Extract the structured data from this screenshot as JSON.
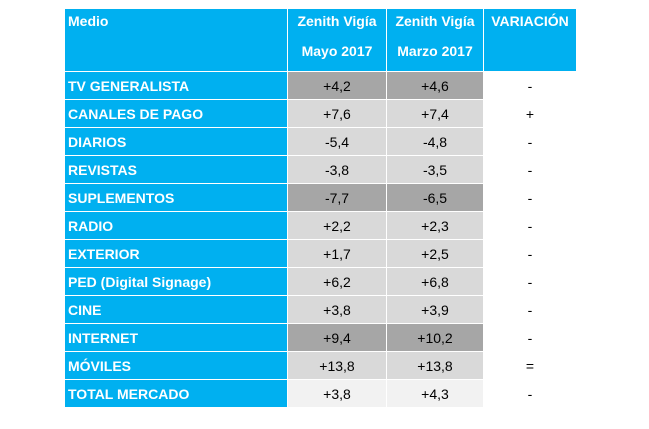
{
  "header": {
    "medio": "Medio",
    "col1_line1": "Zenith Vigía",
    "col1_line2": "Mayo 2017",
    "col2_line1": "Zenith Vigía",
    "col2_line2": "Marzo 2017",
    "variacion": "VARIACIÓN"
  },
  "rows": [
    {
      "name": "TV GENERALISTA",
      "mayo": "+4,2",
      "marzo": "+4,6",
      "var": "-"
    },
    {
      "name": "CANALES DE PAGO",
      "mayo": "+7,6",
      "marzo": "+7,4",
      "var": "+"
    },
    {
      "name": "DIARIOS",
      "mayo": "-5,4",
      "marzo": "-4,8",
      "var": "-"
    },
    {
      "name": "REVISTAS",
      "mayo": "-3,8",
      "marzo": "-3,5",
      "var": "-"
    },
    {
      "name": "SUPLEMENTOS",
      "mayo": "-7,7",
      "marzo": "-6,5",
      "var": "-"
    },
    {
      "name": "RADIO",
      "mayo": "+2,2",
      "marzo": "+2,3",
      "var": "-"
    },
    {
      "name": "EXTERIOR",
      "mayo": "+1,7",
      "marzo": "+2,5",
      "var": "-"
    },
    {
      "name": "PED (Digital Signage)",
      "mayo": "+6,2",
      "marzo": "+6,8",
      "var": "-"
    },
    {
      "name": "CINE",
      "mayo": "+3,8",
      "marzo": "+3,9",
      "var": "-"
    },
    {
      "name": "INTERNET",
      "mayo": "+9,4",
      "marzo": "+10,2",
      "var": "-"
    },
    {
      "name": "MÓVILES",
      "mayo": "+13,8",
      "marzo": "+13,8",
      "var": "="
    },
    {
      "name": "TOTAL MERCADO",
      "mayo": "+3,8",
      "marzo": "+4,3",
      "var": "-"
    }
  ],
  "colors": {
    "header_bg": "#00b0f0",
    "dark_cell": "#a6a6a6",
    "light_cell": "#d9d9d9",
    "pale_cell": "#f2f2f2"
  }
}
